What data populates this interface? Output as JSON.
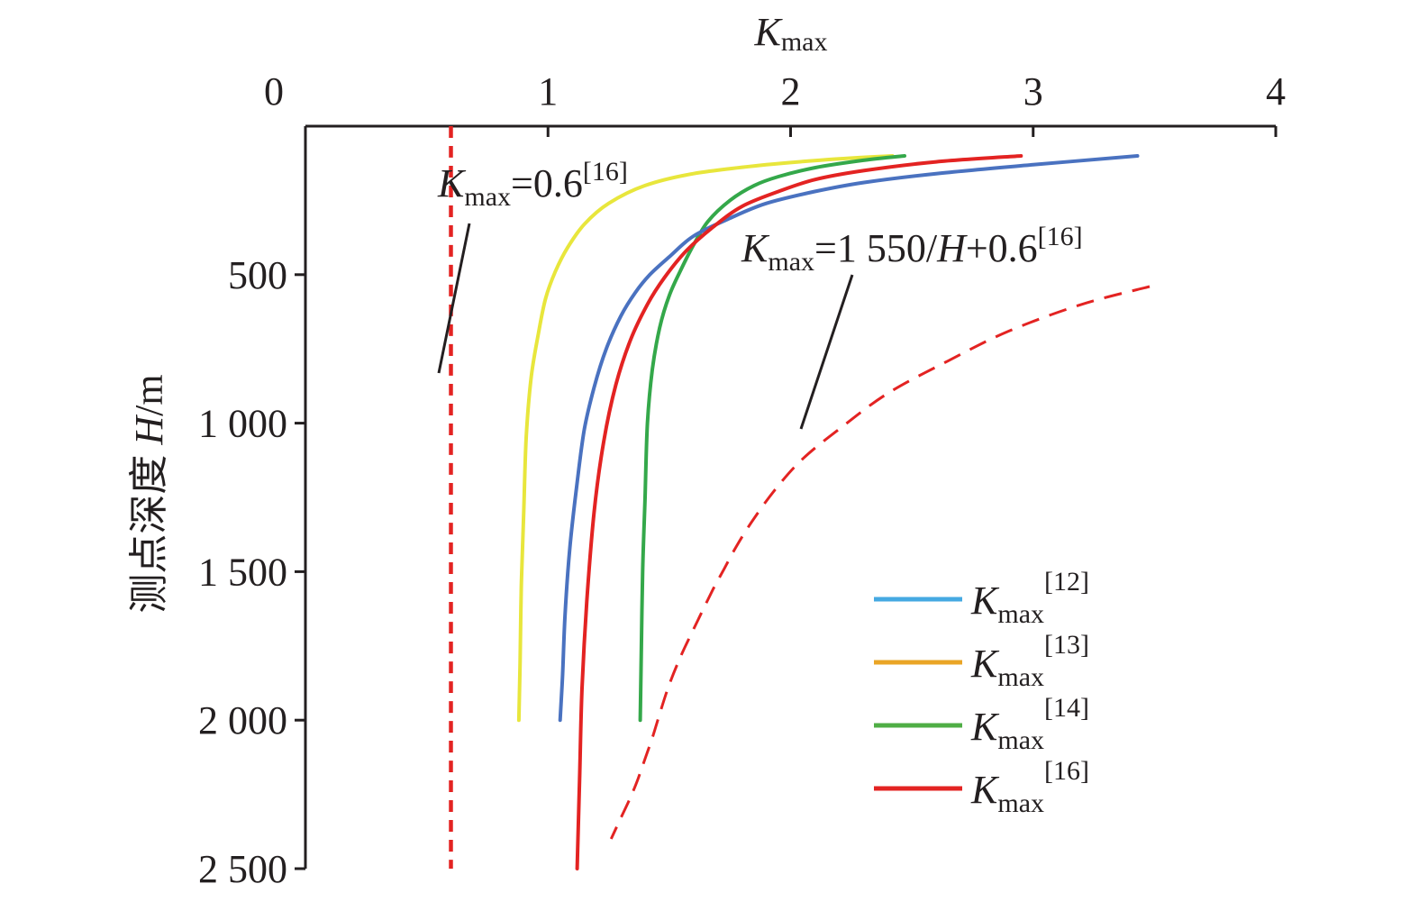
{
  "chart_data": {
    "type": "line",
    "xlabel": "K",
    "xlabel_sub": "max",
    "ylabel": "测点深度 H/m",
    "ylabel_prefix": "测点深度 ",
    "ylabel_italic": "H",
    "ylabel_suffix": "/m",
    "x_axis_position": "top",
    "y_axis_inverted": true,
    "xlim": [
      0,
      4
    ],
    "ylim": [
      0,
      2500
    ],
    "x_ticks": [
      0,
      1,
      2,
      3,
      4
    ],
    "x_tick_labels": [
      "0",
      "1",
      "2",
      "3",
      "4"
    ],
    "y_ticks": [
      500,
      1000,
      1500,
      2000,
      2500
    ],
    "y_tick_labels": [
      "500",
      "1 000",
      "1 500",
      "2 000",
      "2 500"
    ],
    "grid": false,
    "legend_position": "bottom-right",
    "series": [
      {
        "name": "K_max^[12]",
        "legend_K": "K",
        "legend_sub": "max",
        "legend_sup": "[12]",
        "color": "#4a72c0",
        "legend_color": "#45a9e2",
        "style": "solid",
        "x": [
          3.43,
          3.0,
          2.6,
          2.3,
          2.1,
          1.9,
          1.75,
          1.6,
          1.5,
          1.42,
          1.36,
          1.3,
          1.24,
          1.19,
          1.15,
          1.12,
          1.09,
          1.07,
          1.06,
          1.05
        ],
        "y": [
          100,
          130,
          160,
          190,
          220,
          260,
          310,
          370,
          440,
          500,
          560,
          640,
          750,
          880,
          1020,
          1200,
          1420,
          1650,
          1850,
          2000
        ]
      },
      {
        "name": "K_max^[13]",
        "legend_K": "K",
        "legend_sub": "max",
        "legend_sup": "[13]",
        "color": "#e8e63c",
        "legend_color": "#eaa526",
        "style": "solid",
        "x": [
          2.42,
          2.2,
          1.9,
          1.6,
          1.4,
          1.25,
          1.15,
          1.08,
          1.03,
          0.99,
          0.96,
          0.93,
          0.91,
          0.9,
          0.89,
          0.885,
          0.88
        ],
        "y": [
          100,
          110,
          130,
          160,
          200,
          260,
          330,
          410,
          490,
          580,
          700,
          850,
          1050,
          1300,
          1550,
          1800,
          2000
        ]
      },
      {
        "name": "K_max^[14]",
        "legend_K": "K",
        "legend_sub": "max",
        "legend_sup": "[14]",
        "color": "#34a84a",
        "legend_color": "#4fae45",
        "style": "solid",
        "x": [
          2.47,
          2.3,
          2.1,
          1.95,
          1.85,
          1.75,
          1.66,
          1.6,
          1.55,
          1.5,
          1.46,
          1.43,
          1.41,
          1.4,
          1.39,
          1.385,
          1.38
        ],
        "y": [
          100,
          115,
          140,
          170,
          200,
          250,
          320,
          400,
          480,
          570,
          680,
          820,
          1000,
          1250,
          1500,
          1750,
          2000
        ]
      },
      {
        "name": "K_max^[16]",
        "legend_K": "K",
        "legend_sub": "max",
        "legend_sup": "[16]",
        "color": "#e32322",
        "legend_color": "#e32322",
        "style": "solid",
        "x": [
          2.95,
          2.6,
          2.3,
          2.1,
          1.95,
          1.8,
          1.68,
          1.57,
          1.48,
          1.41,
          1.34,
          1.28,
          1.23,
          1.19,
          1.16,
          1.14,
          1.13,
          1.12
        ],
        "y": [
          100,
          120,
          150,
          180,
          220,
          270,
          340,
          420,
          510,
          600,
          720,
          870,
          1060,
          1300,
          1600,
          1900,
          2200,
          2500
        ]
      }
    ],
    "reference_lines": [
      {
        "name": "K_max=0.6",
        "formula": "K_max=0.6",
        "color": "#e32322",
        "style": "dashed",
        "x": [
          0.6,
          0.6
        ],
        "y": [
          0,
          2500
        ]
      },
      {
        "name": "K_max=1 550/H+0.6",
        "formula": "K_max=1550/H+0.6",
        "color": "#e32322",
        "style": "dashed",
        "x": [
          3.48,
          3.2,
          2.9,
          2.65,
          2.4,
          2.2,
          2.05,
          1.94,
          1.85,
          1.78,
          1.72,
          1.68,
          1.62,
          1.55,
          1.5,
          1.46,
          1.43,
          1.4,
          1.37,
          1.34,
          1.3,
          1.26
        ],
        "y": [
          540,
          600,
          690,
          790,
          900,
          1020,
          1120,
          1220,
          1320,
          1410,
          1500,
          1560,
          1660,
          1780,
          1880,
          1980,
          2060,
          2130,
          2200,
          2260,
          2330,
          2400
        ]
      }
    ],
    "annotations": [
      {
        "id": "ann1",
        "K": "K",
        "sub": "max",
        "text": "=0.6",
        "sup": "[16]"
      },
      {
        "id": "ann2",
        "K": "K",
        "sub": "max",
        "text": "=1 550/",
        "italic": "H",
        "text2": "+0.6",
        "sup": "[16]"
      }
    ]
  }
}
